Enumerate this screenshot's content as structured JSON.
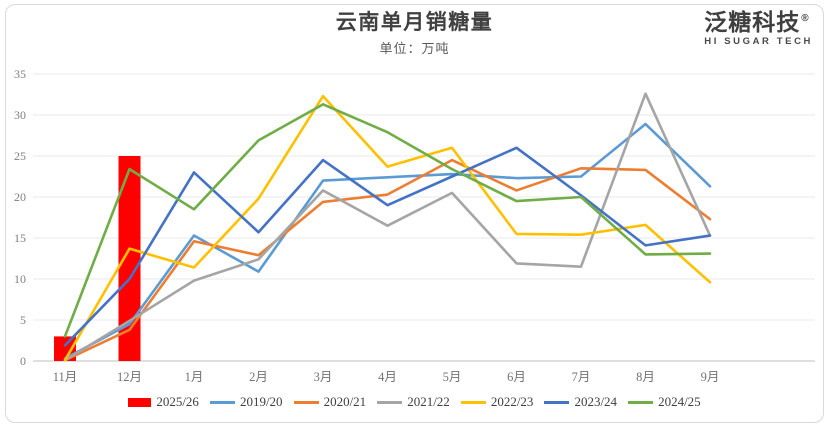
{
  "page": {
    "title": "云南单月销糖量",
    "subtitle": "单位：万吨",
    "logo": {
      "name": "泛糖科技",
      "reg_mark": "®",
      "tagline": "HI SUGAR TECH"
    }
  },
  "chart_data": {
    "type": "combo-bar-line",
    "title": "云南单月销糖量",
    "subtitle": "单位：万吨",
    "categories": [
      "11月",
      "12月",
      "1月",
      "2月",
      "3月",
      "4月",
      "5月",
      "6月",
      "7月",
      "8月",
      "9月"
    ],
    "ylim": [
      0,
      35
    ],
    "ytick_step": 5,
    "ytick_labels": [
      "0",
      "5",
      "10",
      "15",
      "20",
      "25",
      "30",
      "35"
    ],
    "grid": true,
    "legend_position": "bottom",
    "axis_colors": {
      "gridline": "#e8e8e8",
      "baseline": "#bfbfbf",
      "tick_text": "#7f7f7f"
    },
    "series": [
      {
        "name": "2025/26",
        "type": "bar",
        "color": "#FF0000",
        "values": [
          3.0,
          25.0,
          null,
          null,
          null,
          null,
          null,
          null,
          null,
          null,
          null
        ]
      },
      {
        "name": "2019/20",
        "type": "line",
        "color": "#5B9BD5",
        "values": [
          0.3,
          4.5,
          15.3,
          10.9,
          22.0,
          22.4,
          22.8,
          22.3,
          22.5,
          28.9,
          21.3
        ]
      },
      {
        "name": "2020/21",
        "type": "line",
        "color": "#ED7D31",
        "values": [
          0.1,
          3.8,
          14.6,
          12.9,
          19.4,
          20.3,
          24.5,
          20.8,
          23.5,
          23.3,
          17.3
        ]
      },
      {
        "name": "2021/22",
        "type": "line",
        "color": "#A5A5A5",
        "values": [
          0.1,
          4.9,
          9.8,
          12.4,
          20.8,
          16.5,
          20.5,
          11.9,
          11.5,
          32.6,
          15.3
        ]
      },
      {
        "name": "2022/23",
        "type": "line",
        "color": "#FFC000",
        "values": [
          0.1,
          13.7,
          11.4,
          19.8,
          32.3,
          23.7,
          26.0,
          15.5,
          15.4,
          16.6,
          9.6
        ]
      },
      {
        "name": "2023/24",
        "type": "line",
        "color": "#4472C4",
        "values": [
          1.9,
          10.0,
          23.0,
          15.7,
          24.5,
          19.0,
          22.5,
          26.0,
          20.2,
          14.1,
          15.3
        ]
      },
      {
        "name": "2024/25",
        "type": "line",
        "color": "#70AD47",
        "values": [
          3.0,
          23.4,
          18.5,
          26.9,
          31.3,
          27.9,
          23.4,
          19.5,
          20.0,
          13.0,
          13.1
        ]
      }
    ]
  }
}
